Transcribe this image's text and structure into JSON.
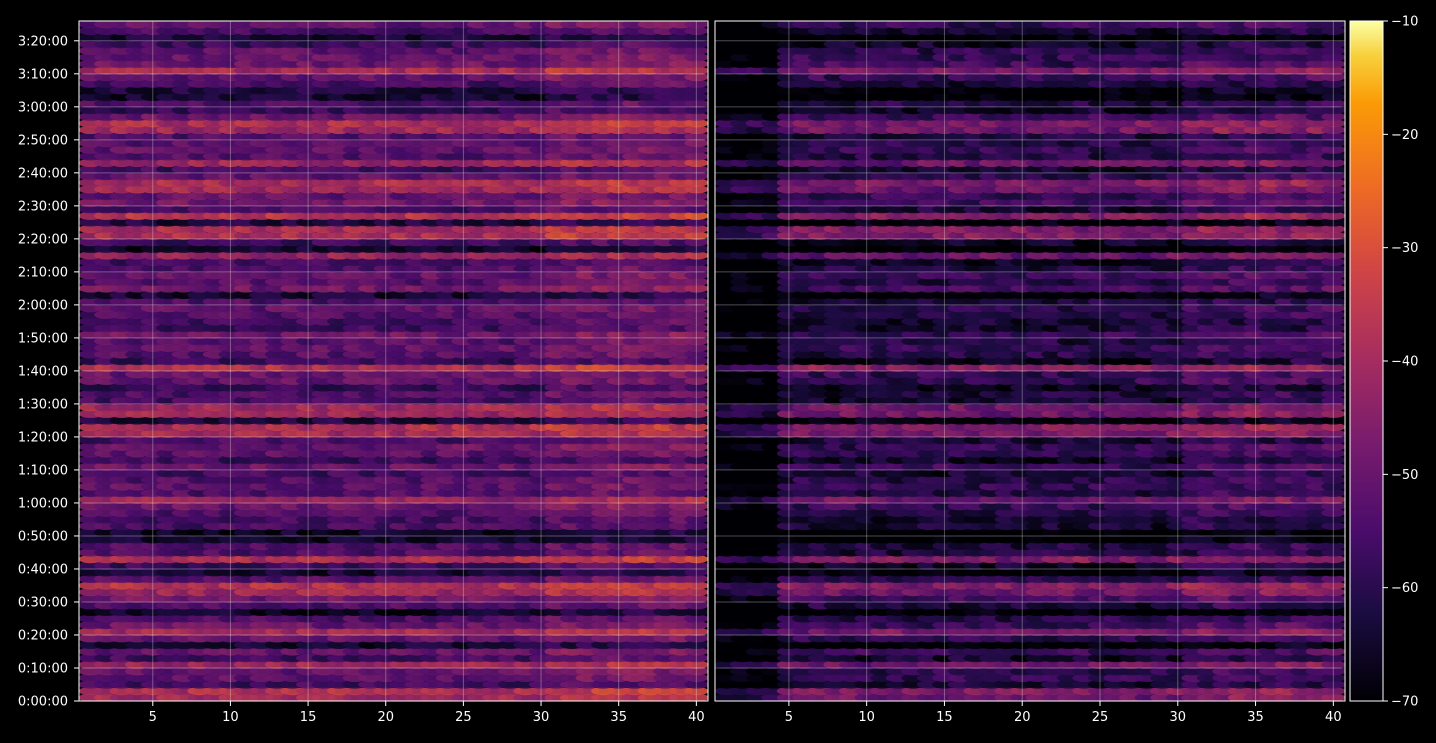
{
  "chart_data": [
    {
      "type": "heatmap",
      "panel": "left",
      "title": "",
      "xlabel": "",
      "ylabel": "",
      "xlim": [
        1,
        40
      ],
      "ylim_seconds": [
        0,
        12360
      ],
      "x_ticks": [
        5,
        10,
        15,
        20,
        25,
        30,
        35,
        40
      ],
      "x_tick_labels": [
        "5",
        "10",
        "15",
        "20",
        "25",
        "30",
        "35",
        "40"
      ],
      "grid": true
    },
    {
      "type": "heatmap",
      "panel": "right",
      "title": "",
      "xlabel": "",
      "ylabel": "",
      "xlim": [
        1,
        40
      ],
      "ylim_seconds": [
        0,
        12360
      ],
      "x_ticks": [
        5,
        10,
        15,
        20,
        25,
        30,
        35,
        40
      ],
      "x_tick_labels": [
        "5",
        "10",
        "15",
        "20",
        "25",
        "30",
        "35",
        "40"
      ],
      "grid": true
    }
  ],
  "y_axis": {
    "ticks_seconds": [
      0,
      600,
      1200,
      1800,
      2400,
      3000,
      3600,
      4200,
      4800,
      5400,
      6000,
      6600,
      7200,
      7800,
      8400,
      9000,
      9600,
      10200,
      10800,
      11400,
      12000
    ],
    "tick_labels": [
      "0:00:00",
      "0:10:00",
      "0:20:00",
      "0:30:00",
      "0:40:00",
      "0:50:00",
      "1:00:00",
      "1:10:00",
      "1:20:00",
      "1:30:00",
      "1:40:00",
      "1:50:00",
      "2:00:00",
      "2:10:00",
      "2:20:00",
      "2:30:00",
      "2:40:00",
      "2:50:00",
      "3:00:00",
      "3:10:00",
      "3:20:00"
    ]
  },
  "colorbar": {
    "colormap": "inferno",
    "range": [
      -70,
      -10
    ],
    "ticks": [
      -70,
      -60,
      -50,
      -40,
      -30,
      -20,
      -10
    ],
    "tick_labels": [
      "−70",
      "−60",
      "−50",
      "−40",
      "−30",
      "−20",
      "−10"
    ]
  },
  "bands": {
    "row_pitch_seconds": 120,
    "strong_rows_seconds": [
      60,
      600,
      1200,
      1980,
      2520,
      3000,
      3600,
      4800,
      4920,
      5100,
      5280,
      6000,
      8100,
      8400,
      8520,
      8760,
      9240,
      9360,
      9720,
      10380,
      11400
    ],
    "colors": {
      "background": "#000000",
      "text": "#ffffff"
    }
  }
}
